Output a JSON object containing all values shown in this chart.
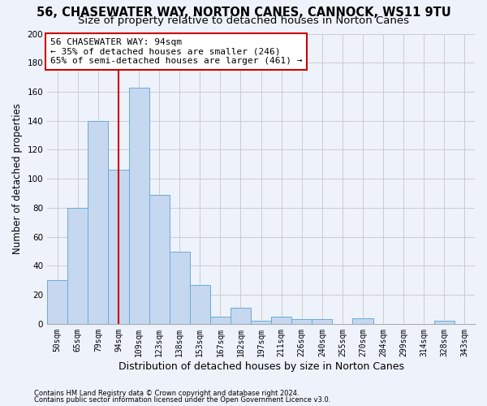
{
  "title1": "56, CHASEWATER WAY, NORTON CANES, CANNOCK, WS11 9TU",
  "title2": "Size of property relative to detached houses in Norton Canes",
  "xlabel": "Distribution of detached houses by size in Norton Canes",
  "ylabel": "Number of detached properties",
  "footnote1": "Contains HM Land Registry data © Crown copyright and database right 2024.",
  "footnote2": "Contains public sector information licensed under the Open Government Licence v3.0.",
  "bin_labels": [
    "50sqm",
    "65sqm",
    "79sqm",
    "94sqm",
    "109sqm",
    "123sqm",
    "138sqm",
    "153sqm",
    "167sqm",
    "182sqm",
    "197sqm",
    "211sqm",
    "226sqm",
    "240sqm",
    "255sqm",
    "270sqm",
    "284sqm",
    "299sqm",
    "314sqm",
    "328sqm",
    "343sqm"
  ],
  "bar_values": [
    30,
    80,
    140,
    106,
    163,
    89,
    50,
    27,
    5,
    11,
    2,
    5,
    3,
    3,
    0,
    4,
    0,
    0,
    0,
    2,
    0
  ],
  "bar_color": "#c5d8f0",
  "bar_edge_color": "#6aaad4",
  "vline_x_index": 3,
  "annotation_text": "56 CHASEWATER WAY: 94sqm\n← 35% of detached houses are smaller (246)\n65% of semi-detached houses are larger (461) →",
  "annotation_box_color": "white",
  "annotation_box_edge_color": "#cc0000",
  "vline_color": "#cc0000",
  "ylim": [
    0,
    200
  ],
  "yticks": [
    0,
    20,
    40,
    60,
    80,
    100,
    120,
    140,
    160,
    180,
    200
  ],
  "grid_color": "#cccccc",
  "background_color": "#eef2fb",
  "title1_fontsize": 10.5,
  "title2_fontsize": 9.5,
  "xlabel_fontsize": 9,
  "ylabel_fontsize": 8.5,
  "annotation_fontsize": 8,
  "tick_fontsize": 7
}
